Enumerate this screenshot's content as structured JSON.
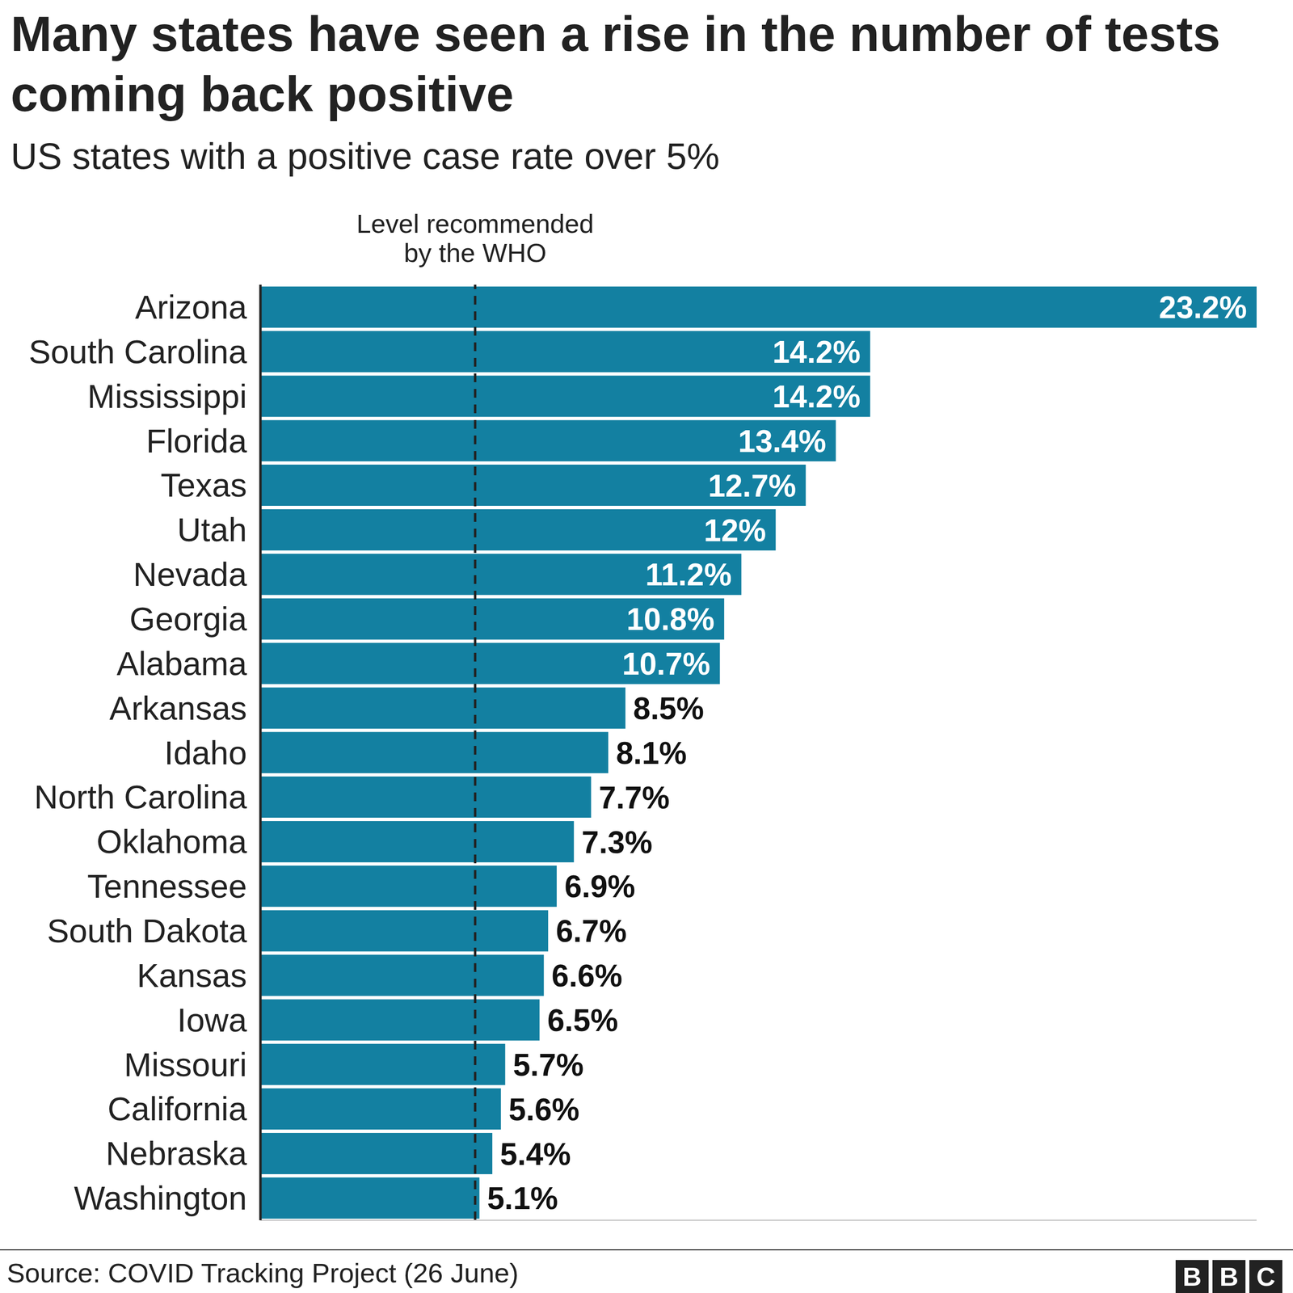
{
  "chart_data": {
    "type": "bar",
    "orientation": "horizontal",
    "title": "Many states have seen a rise in the number of tests coming back positive",
    "subtitle": "US states with a positive case rate over 5%",
    "categories": [
      "Arizona",
      "South Carolina",
      "Mississippi",
      "Florida",
      "Texas",
      "Utah",
      "Nevada",
      "Georgia",
      "Alabama",
      "Arkansas",
      "Idaho",
      "North Carolina",
      "Oklahoma",
      "Tennessee",
      "South Dakota",
      "Kansas",
      "Iowa",
      "Missouri",
      "California",
      "Nebraska",
      "Washington"
    ],
    "values": [
      23.2,
      14.2,
      14.2,
      13.4,
      12.7,
      12,
      11.2,
      10.8,
      10.7,
      8.5,
      8.1,
      7.7,
      7.3,
      6.9,
      6.7,
      6.6,
      6.5,
      5.7,
      5.6,
      5.4,
      5.1
    ],
    "value_labels": [
      "23.2%",
      "14.2%",
      "14.2%",
      "13.4%",
      "12.7%",
      "12%",
      "11.2%",
      "10.8%",
      "10.7%",
      "8.5%",
      "8.1%",
      "7.7%",
      "7.3%",
      "6.9%",
      "6.7%",
      "6.6%",
      "6.5%",
      "5.7%",
      "5.6%",
      "5.4%",
      "5.1%"
    ],
    "color": "#1380a1",
    "xlim": [
      0,
      23.2
    ],
    "xticks": [],
    "tick_labels": "y",
    "data_labels": true,
    "grid": false,
    "annotations": [
      {
        "text": "Level recommended\nby the WHO",
        "x": 5
      }
    ],
    "source": "Source: COVID Tracking Project (26 June)",
    "logo": "BBC"
  }
}
